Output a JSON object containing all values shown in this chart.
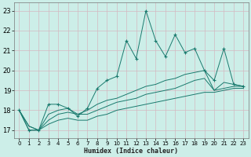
{
  "xlabel": "Humidex (Indice chaleur)",
  "bg_color": "#cceee8",
  "grid_color": "#b8d8d4",
  "line_color": "#1a7a6e",
  "xlim": [
    -0.5,
    23.5
  ],
  "ylim": [
    16.6,
    23.4
  ],
  "xticks": [
    0,
    1,
    2,
    3,
    4,
    5,
    6,
    7,
    8,
    9,
    10,
    11,
    12,
    13,
    14,
    15,
    16,
    17,
    18,
    19,
    20,
    21,
    22,
    23
  ],
  "yticks": [
    17,
    18,
    19,
    20,
    21,
    22,
    23
  ],
  "s1_x": [
    0,
    1,
    2,
    3,
    4,
    5,
    6,
    7,
    8,
    9,
    10,
    11,
    12,
    13,
    14,
    15,
    16,
    17,
    18,
    19,
    20,
    21,
    22,
    23
  ],
  "s1_y": [
    18.0,
    17.0,
    17.0,
    18.3,
    18.3,
    18.1,
    17.7,
    18.1,
    19.1,
    19.5,
    19.7,
    21.5,
    20.6,
    23.0,
    21.5,
    20.7,
    21.8,
    20.9,
    21.1,
    20.0,
    19.5,
    21.1,
    19.3,
    19.2
  ],
  "s2_x": [
    0,
    1,
    2,
    3,
    4,
    5,
    6,
    7,
    8,
    9,
    10,
    11,
    12,
    13,
    14,
    15,
    16,
    17,
    18,
    19,
    20,
    21,
    22,
    23
  ],
  "s2_y": [
    18.0,
    17.2,
    17.0,
    17.8,
    18.0,
    18.1,
    17.8,
    18.0,
    18.3,
    18.5,
    18.6,
    18.8,
    19.0,
    19.2,
    19.3,
    19.5,
    19.6,
    19.8,
    19.9,
    20.0,
    19.0,
    19.4,
    19.3,
    19.2
  ],
  "s3_x": [
    0,
    1,
    2,
    3,
    4,
    5,
    6,
    7,
    8,
    9,
    10,
    11,
    12,
    13,
    14,
    15,
    16,
    17,
    18,
    19,
    20,
    21,
    22,
    23
  ],
  "s3_y": [
    18.0,
    17.2,
    17.0,
    17.5,
    17.8,
    17.9,
    17.8,
    17.8,
    18.0,
    18.2,
    18.4,
    18.5,
    18.6,
    18.8,
    18.9,
    19.0,
    19.1,
    19.3,
    19.5,
    19.6,
    19.0,
    19.1,
    19.2,
    19.2
  ],
  "s4_x": [
    0,
    1,
    2,
    3,
    4,
    5,
    6,
    7,
    8,
    9,
    10,
    11,
    12,
    13,
    14,
    15,
    16,
    17,
    18,
    19,
    20,
    21,
    22,
    23
  ],
  "s4_y": [
    18.0,
    17.0,
    17.0,
    17.3,
    17.5,
    17.6,
    17.5,
    17.5,
    17.7,
    17.8,
    18.0,
    18.1,
    18.2,
    18.3,
    18.4,
    18.5,
    18.6,
    18.7,
    18.8,
    18.9,
    18.9,
    19.0,
    19.1,
    19.1
  ]
}
